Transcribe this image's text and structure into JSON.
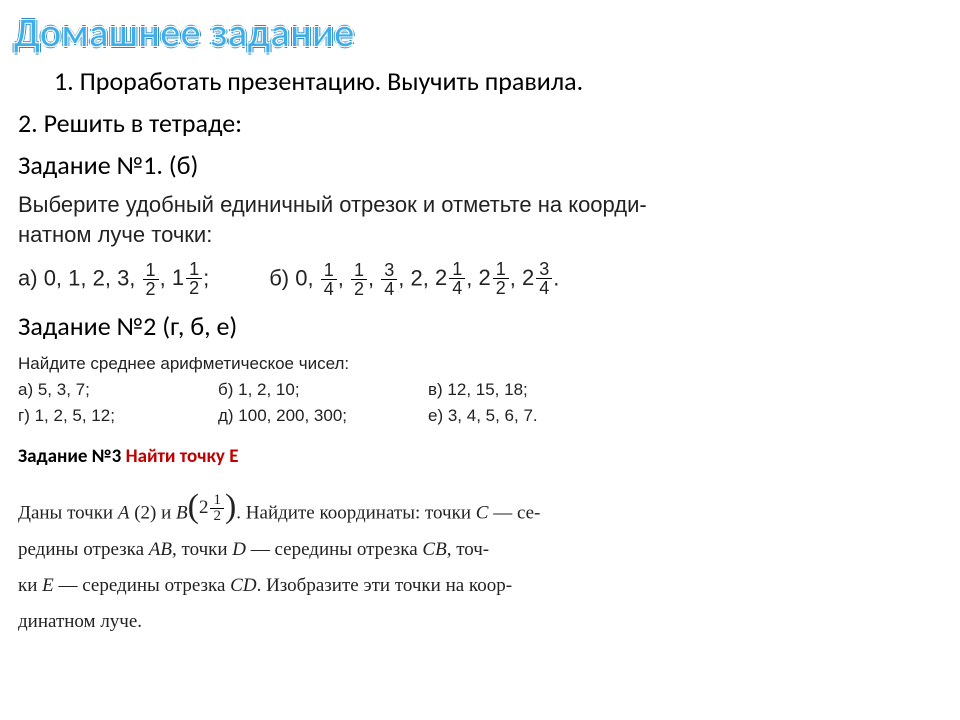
{
  "title": "Домашнее задание",
  "intro": {
    "item1_num": "1.",
    "item1": "Проработать презентацию. Выучить правила.",
    "item2": "2. Решить в тетраде:"
  },
  "task1": {
    "heading": "Задание №1. (б)",
    "instruction_l1": "Выберите удобный единичный отрезок и отметьте на коорди-",
    "instruction_l2": "натном луче точки:",
    "a_label": "а)",
    "a_prefix": "0, 1, 2, 3,",
    "a_f1": {
      "n": "1",
      "d": "2"
    },
    "a_comma": ",",
    "a_f2": {
      "w": "1",
      "n": "1",
      "d": "2"
    },
    "a_end": ";",
    "b_label": "б)",
    "b_prefix": "0,",
    "b_f1": {
      "n": "1",
      "d": "4"
    },
    "b_f2": {
      "n": "1",
      "d": "2"
    },
    "b_f3": {
      "n": "3",
      "d": "4"
    },
    "b_mid": ", 2,",
    "b_f4": {
      "w": "2",
      "n": "1",
      "d": "4"
    },
    "b_f5": {
      "w": "2",
      "n": "1",
      "d": "2"
    },
    "b_f6": {
      "w": "2",
      "n": "3",
      "d": "4"
    },
    "b_end": "."
  },
  "task2": {
    "heading": "Задание №2 (г, б, е)",
    "instruction": "Найдите среднее арифметическое чисел:",
    "cells": {
      "a": "а) 5, 3, 7;",
      "b": "б) 1, 2, 10;",
      "v": "в) 12, 15, 18;",
      "g": "г) 1, 2, 5, 12;",
      "d": "д) 100, 200, 300;",
      "e": "е) 3, 4, 5, 6, 7."
    }
  },
  "task3": {
    "heading_black": "Задание №3 ",
    "heading_red": "Найти точку Е",
    "t_pre1": "Даны точки ",
    "A": "A",
    "a_coord": " (2) и ",
    "B": "B",
    "b_frac": {
      "w": "2",
      "n": "1",
      "d": "2"
    },
    "t_post1": ". Найдите координаты: точки ",
    "C": "C",
    "t_post1b": " — се-",
    "t_l2a": "редины отрезка ",
    "AB": "AB",
    "t_l2b": ", точки ",
    "D": "D",
    "t_l2c": " — середины отрезка ",
    "CB": "CB",
    "t_l2d": ", точ-",
    "t_l3a": "ки ",
    "E": "E",
    "t_l3b": " — середины отрезка ",
    "CD": "CD",
    "t_l3c": ". Изобразите эти точки на коор-",
    "t_l4": "динатном луче."
  },
  "colors": {
    "title": "#3daee9",
    "title_outline": "#2a8cc4",
    "text": "#000000",
    "red": "#c00000",
    "background": "#ffffff"
  },
  "typography": {
    "title_fontsize": 40,
    "body_fontsize": 26,
    "task1_fontsize": 22,
    "task2_fontsize": 17,
    "task3_title_fontsize": 19,
    "task3_fontsize": 19,
    "frac_fontsize": 18
  }
}
